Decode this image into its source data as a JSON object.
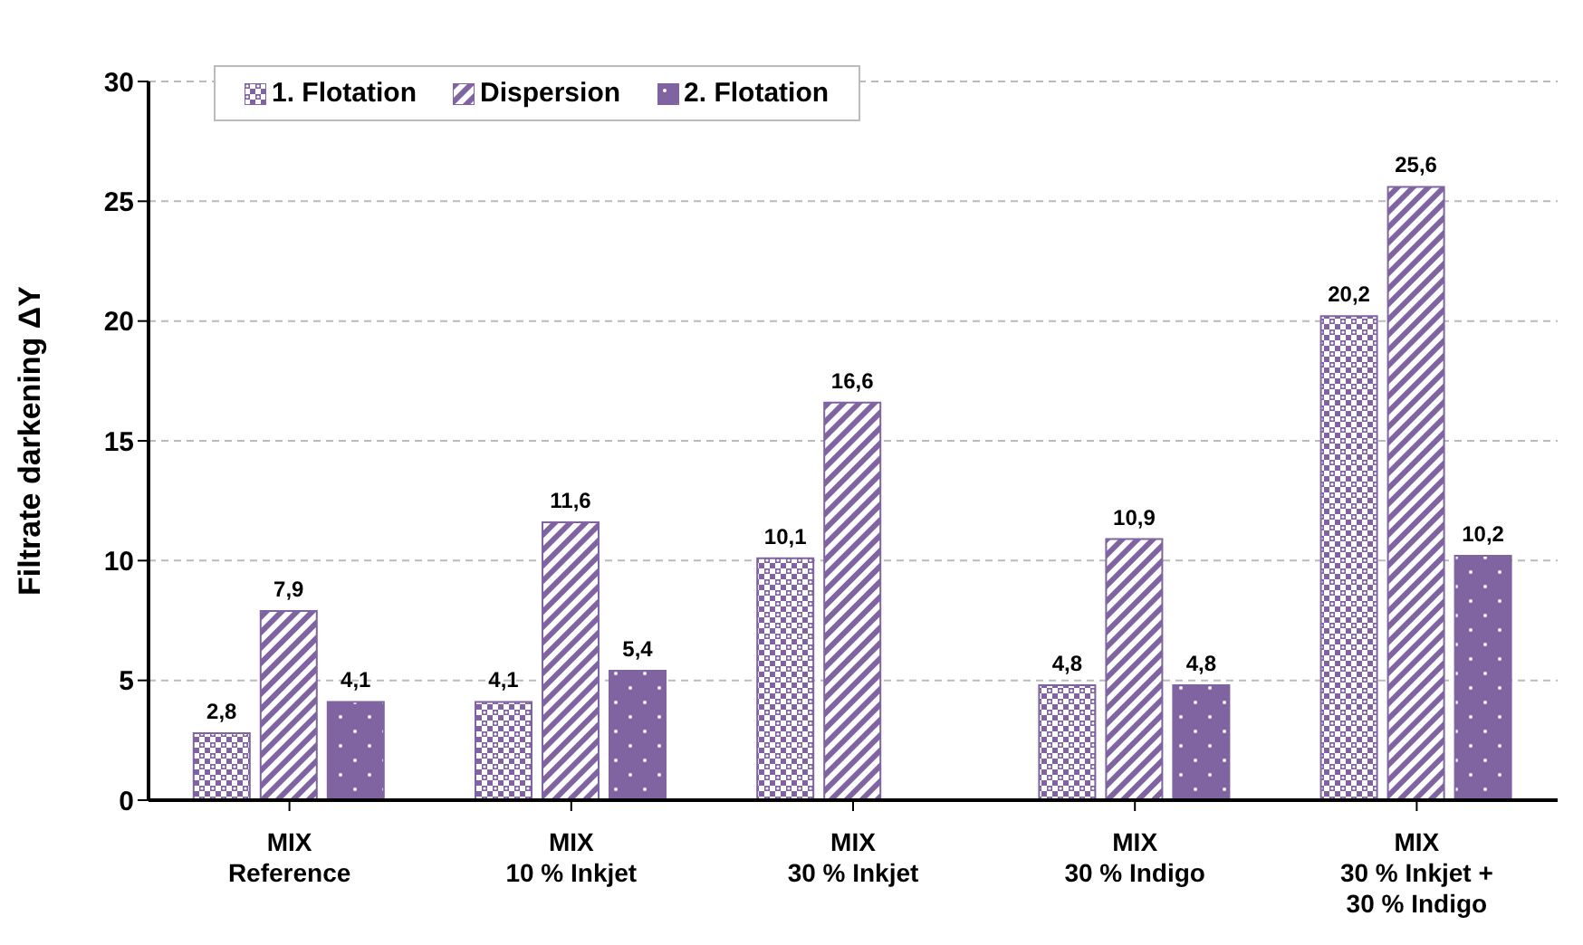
{
  "chart_data": {
    "type": "bar",
    "ylabel": "Filtrate darkening ΔY",
    "categories": [
      "MIX\nReference",
      "MIX\n10 % Inkjet",
      "MIX\n30 % Inkjet",
      "MIX\n30 % Indigo",
      "MIX\n30 % Inkjet +\n30 % Indigo"
    ],
    "series": [
      {
        "name": "1. Flotation",
        "color": "#8064a2",
        "values": [
          2.8,
          4.1,
          10.1,
          4.8,
          20.2
        ],
        "value_labels": [
          "2,8",
          "4,1",
          "10,1",
          "4,8",
          "20,2"
        ]
      },
      {
        "name": "Dispersion",
        "color": "#8064a2",
        "values": [
          7.9,
          11.6,
          16.6,
          10.9,
          25.6
        ],
        "value_labels": [
          "7,9",
          "11,6",
          "16,6",
          "10,9",
          "25,6"
        ]
      },
      {
        "name": "2. Flotation",
        "color": "#8064a2",
        "values": [
          4.1,
          5.4,
          null,
          4.8,
          10.2
        ],
        "value_labels": [
          "4,1",
          "5,4",
          null,
          "4,8",
          "10,2"
        ]
      }
    ],
    "ylim": [
      0,
      30
    ],
    "yticks": [
      0,
      5,
      10,
      15,
      20,
      25,
      30
    ],
    "grid": "y",
    "legend": "top left"
  }
}
